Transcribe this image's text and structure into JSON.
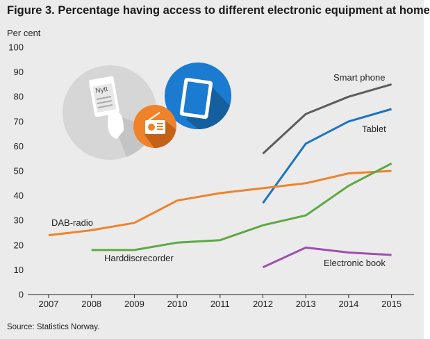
{
  "title": "Figure 3. Percentage having access to different electronic equipment at home",
  "source": "Source: Statistics Norway.",
  "icon_text": "Nytt",
  "chart_data": {
    "type": "line",
    "ylabel": "Per cent",
    "xlabel": "",
    "ylim": [
      0,
      100
    ],
    "yticks": [
      0,
      10,
      20,
      30,
      40,
      50,
      60,
      70,
      80,
      90,
      100
    ],
    "xticks": [
      2007,
      2008,
      2009,
      2010,
      2011,
      2012,
      2013,
      2014,
      2015
    ],
    "grid": false,
    "series": [
      {
        "name": "Smart phone",
        "color": "#5c5c5c",
        "x": [
          2012,
          2013,
          2014,
          2015
        ],
        "values": [
          57,
          73,
          80,
          85
        ]
      },
      {
        "name": "Tablet",
        "color": "#1a74c4",
        "x": [
          2012,
          2013,
          2014,
          2015
        ],
        "values": [
          37,
          61,
          70,
          75
        ]
      },
      {
        "name": "DAB-radio",
        "color": "#f08229",
        "x": [
          2007,
          2008,
          2009,
          2010,
          2011,
          2012,
          2013,
          2014,
          2015
        ],
        "values": [
          24,
          26,
          29,
          38,
          41,
          43,
          45,
          49,
          50
        ]
      },
      {
        "name": "Harddiscrecorder",
        "color": "#5fa843",
        "x": [
          2008,
          2009,
          2010,
          2011,
          2012,
          2013,
          2014,
          2015
        ],
        "values": [
          18,
          18,
          21,
          22,
          28,
          32,
          44,
          53
        ]
      },
      {
        "name": "Electronic book",
        "color": "#9e4fb0",
        "x": [
          2012,
          2013,
          2014,
          2015
        ],
        "values": [
          11,
          19,
          17,
          16
        ]
      }
    ]
  }
}
